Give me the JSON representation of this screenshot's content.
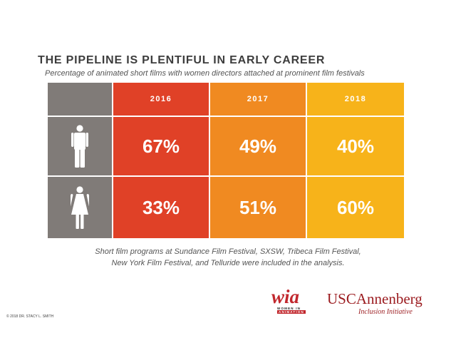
{
  "header": {
    "title": "THE PIPELINE IS PLENTIFUL IN EARLY CAREER",
    "subtitle": "Percentage of animated short films with women directors attached at prominent film festivals"
  },
  "chart_data": {
    "type": "table",
    "columns": [
      "2016",
      "2017",
      "2018"
    ],
    "rows": [
      {
        "icon": "man-icon",
        "values": [
          "67%",
          "49%",
          "40%"
        ]
      },
      {
        "icon": "woman-icon",
        "values": [
          "33%",
          "51%",
          "60%"
        ]
      }
    ],
    "colors": {
      "2016": "#e04127",
      "2017": "#f08a21",
      "2018": "#f7b31a",
      "icon_column": "#807b78"
    }
  },
  "note": {
    "line1": "Short film programs at Sundance Film Festival, SXSW, Tribeca Film Festival,",
    "line2": "New York Film Festival, and Telluride were included in the analysis."
  },
  "footer": {
    "copyright": "© 2018 DR. STACY L. SMITH",
    "wia_logo": {
      "main": "wia",
      "sub1": "WOMEN IN",
      "sub2": "ANIMATION"
    },
    "usc_logo": {
      "main": "USCAnnenberg",
      "sub": "Inclusion Initiative"
    }
  }
}
